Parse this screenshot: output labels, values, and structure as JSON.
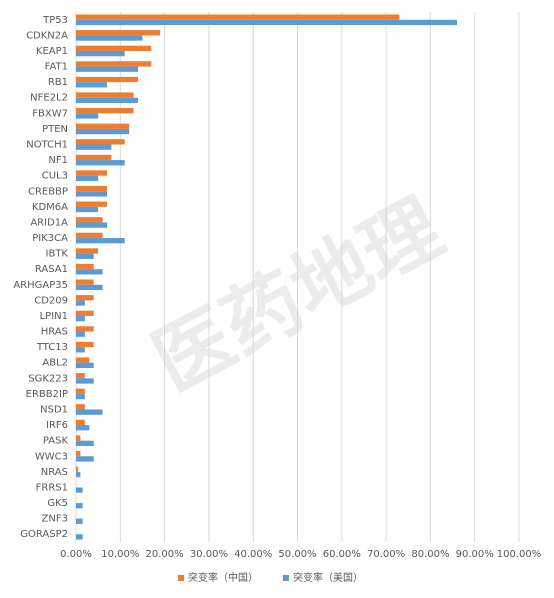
{
  "chart_data": {
    "type": "hbar",
    "watermark": "医药地理",
    "categories": [
      "TP53",
      "CDKN2A",
      "KEAP1",
      "FAT1",
      "RB1",
      "NFE2L2",
      "FBXW7",
      "PTEN",
      "NOTCH1",
      "NF1",
      "CUL3",
      "CREBBP",
      "KDM6A",
      "ARID1A",
      "PIK3CA",
      "IBTK",
      "RASA1",
      "ARHGAP35",
      "CD209",
      "LPIN1",
      "HRAS",
      "TTC13",
      "ABL2",
      "SGK223",
      "ERBB2IP",
      "NSD1",
      "IRF6",
      "PASK",
      "WWC3",
      "NRAS",
      "FRRS1",
      "GK5",
      "ZNF3",
      "GORASP2"
    ],
    "series": [
      {
        "name": "突变率（中国）",
        "color": "#ED7D31",
        "values": [
          73,
          19,
          17,
          17,
          14,
          13,
          13,
          12,
          11,
          8,
          7,
          7,
          7,
          6,
          6,
          5,
          4,
          4,
          4,
          4,
          4,
          4,
          3,
          2,
          2,
          2,
          2,
          1,
          1,
          0.5,
          0,
          0,
          0,
          0
        ]
      },
      {
        "name": "突变率（美国）",
        "color": "#5B9BD5",
        "values": [
          86,
          15,
          11,
          14,
          7,
          14,
          5,
          12,
          8,
          11,
          5,
          7,
          5,
          7,
          11,
          4,
          6,
          6,
          2,
          2,
          2,
          2,
          4,
          4,
          2,
          6,
          3,
          4,
          4,
          1,
          1.5,
          1.5,
          1.5,
          1.5
        ]
      }
    ],
    "xlim": [
      0,
      100
    ],
    "xticks": [
      {
        "value": 0,
        "label": "0.00%"
      },
      {
        "value": 10,
        "label": "10.00%"
      },
      {
        "value": 20,
        "label": "20.00%"
      },
      {
        "value": 30,
        "label": "30.00%"
      },
      {
        "value": 40,
        "label": "40.00%"
      },
      {
        "value": 50,
        "label": "50.00%"
      },
      {
        "value": 60,
        "label": "60.00%"
      },
      {
        "value": 70,
        "label": "70.00%"
      },
      {
        "value": 80,
        "label": "80.00%"
      },
      {
        "value": 90,
        "label": "90.00%"
      },
      {
        "value": 100,
        "label": "100.00%"
      }
    ],
    "grid": true,
    "legend": "bottom"
  }
}
